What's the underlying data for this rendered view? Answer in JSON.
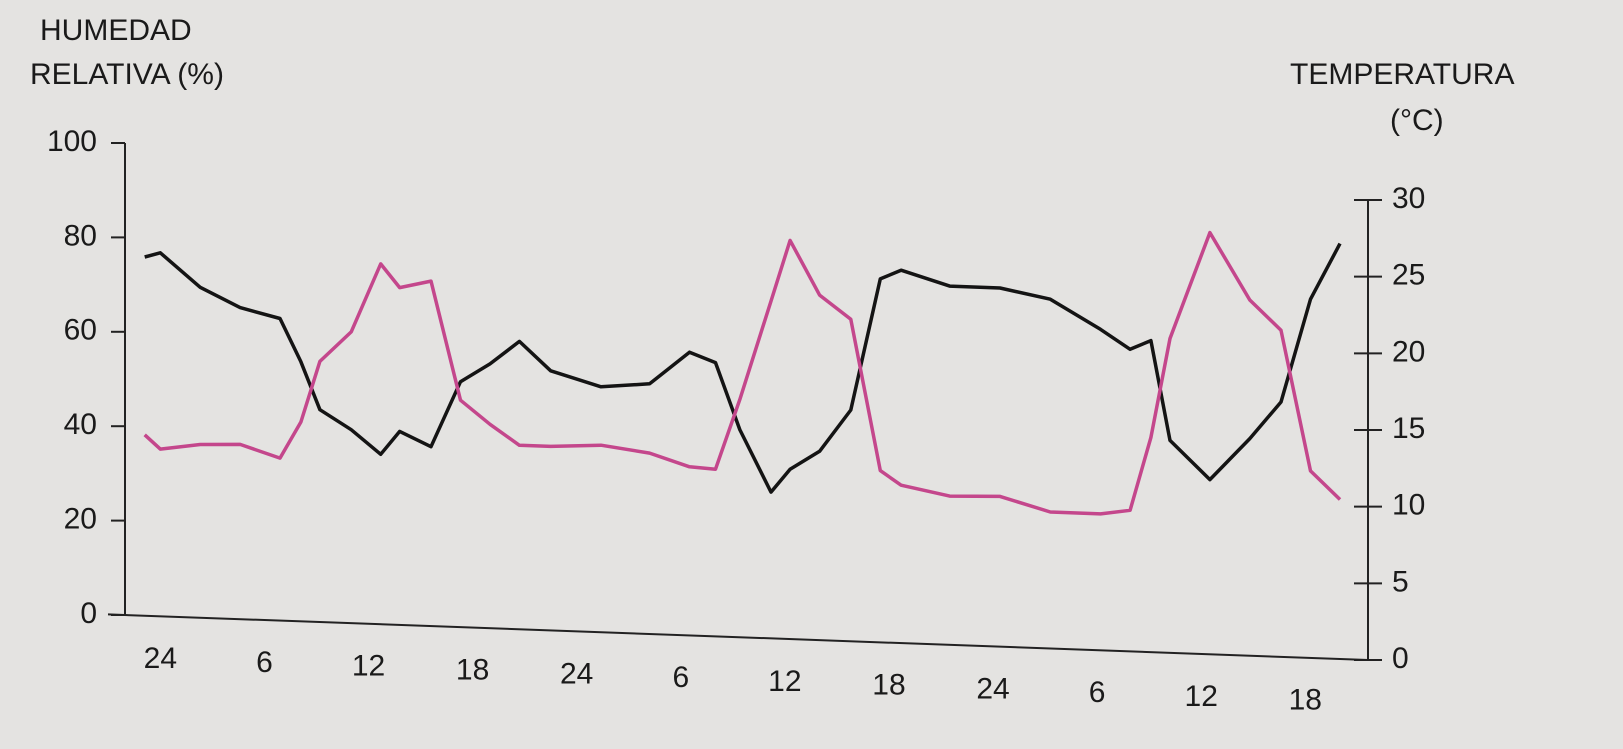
{
  "chart_data": {
    "type": "line",
    "y_label": [
      "HUMEDAD",
      "RELATIVA (%)"
    ],
    "y2_label": [
      "TEMPERATURA",
      "(°C)"
    ],
    "x": [
      -0.9,
      0,
      2.3,
      4.6,
      6.9,
      8.1,
      9.2,
      11,
      12.7,
      13.8,
      15.6,
      17.3,
      19,
      20.7,
      22.5,
      25.4,
      28.2,
      30.5,
      32,
      33.4,
      35.2,
      36.3,
      38,
      39.8,
      41.5,
      42.7,
      45.5,
      48.4,
      51.3,
      54.2,
      55.9,
      57.1,
      58.2,
      60.5,
      62.8,
      64.6,
      66.3,
      68
    ],
    "series": [
      {
        "name": "HUMEDAD RELATIVA",
        "color": "#141414",
        "axis": "y",
        "values": [
          76,
          77,
          70,
          66,
          64,
          55,
          45,
          41,
          36,
          41,
          38,
          52,
          56,
          61,
          55,
          52,
          53,
          60,
          58,
          44,
          31,
          36,
          40,
          49,
          77,
          79,
          76,
          76,
          74,
          68,
          64,
          66,
          45,
          37,
          46,
          54,
          76,
          88
        ]
      },
      {
        "name": "TEMPERATURA",
        "color": "#c4478c",
        "axis": "y2",
        "values": [
          11.8,
          10.9,
          11.3,
          11.4,
          10.6,
          13,
          17,
          19,
          23.5,
          22,
          22.5,
          14.8,
          13.3,
          12,
          12,
          12.2,
          11.8,
          11,
          10.9,
          15.5,
          22,
          26,
          22.5,
          21,
          11.2,
          10.3,
          9.7,
          9.8,
          8.9,
          8.9,
          9.2,
          14,
          20.5,
          27.5,
          23.2,
          21.3,
          12.2,
          10.4
        ]
      }
    ],
    "xlim": [
      -1,
      68
    ],
    "xticks": [
      {
        "value": 0,
        "label": "24"
      },
      6,
      12,
      18,
      {
        "value": 24,
        "label": "24"
      },
      {
        "value": 30,
        "label": "6"
      },
      {
        "value": 36,
        "label": "12"
      },
      {
        "value": 42,
        "label": "18"
      },
      {
        "value": 48,
        "label": "24"
      },
      {
        "value": 54,
        "label": "6"
      },
      {
        "value": 60,
        "label": "12"
      },
      {
        "value": 66,
        "label": "18"
      }
    ],
    "ylim": [
      0,
      100
    ],
    "yticks": [
      0,
      20,
      40,
      60,
      80,
      100
    ],
    "y2lim": [
      0,
      30
    ],
    "y2ticks": [
      0,
      5,
      10,
      15,
      20,
      25,
      30
    ]
  }
}
